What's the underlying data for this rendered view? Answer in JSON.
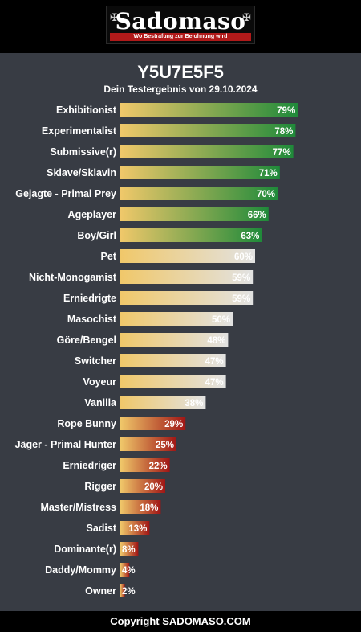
{
  "header": {
    "logo_text": "Sadomaso",
    "tagline": "Wo Bestrafung zur Belohnung wird"
  },
  "result": {
    "title": "Y5U7E5F5",
    "subtitle": "Dein Testergebnis von 29.10.2024"
  },
  "footer": {
    "copyright": "Copyright SADOMASO.COM"
  },
  "colors": {
    "background": "#383c44",
    "bar_start": "#f0c86a",
    "high_end": "#1f8a3a",
    "mid_end": "#e2e2e2",
    "low_end": "#a01515"
  },
  "chart_data": {
    "type": "bar",
    "orientation": "horizontal",
    "xlim": [
      0,
      100
    ],
    "unit": "%",
    "categories": [
      "Exhibitionist",
      "Experimentalist",
      "Submissive(r)",
      "Sklave/Sklavin",
      "Gejagte - Primal Prey",
      "Ageplayer",
      "Boy/Girl",
      "Pet",
      "Nicht-Monogamist",
      "Erniedrigte",
      "Masochist",
      "Göre/Bengel",
      "Switcher",
      "Voyeur",
      "Vanilla",
      "Rope Bunny",
      "Jäger - Primal Hunter",
      "Erniedriger",
      "Rigger",
      "Master/Mistress",
      "Sadist",
      "Dominante(r)",
      "Daddy/Mommy",
      "Owner"
    ],
    "values": [
      79,
      78,
      77,
      71,
      70,
      66,
      63,
      60,
      59,
      59,
      50,
      48,
      47,
      47,
      38,
      29,
      25,
      22,
      20,
      18,
      13,
      8,
      4,
      2
    ],
    "value_labels": [
      "79%",
      "78%",
      "77%",
      "71%",
      "70%",
      "66%",
      "63%",
      "60%",
      "59%",
      "59%",
      "50%",
      "48%",
      "47%",
      "47%",
      "38%",
      "29%",
      "25%",
      "22%",
      "20%",
      "18%",
      "13%",
      "8%",
      "4%",
      "2%"
    ]
  }
}
